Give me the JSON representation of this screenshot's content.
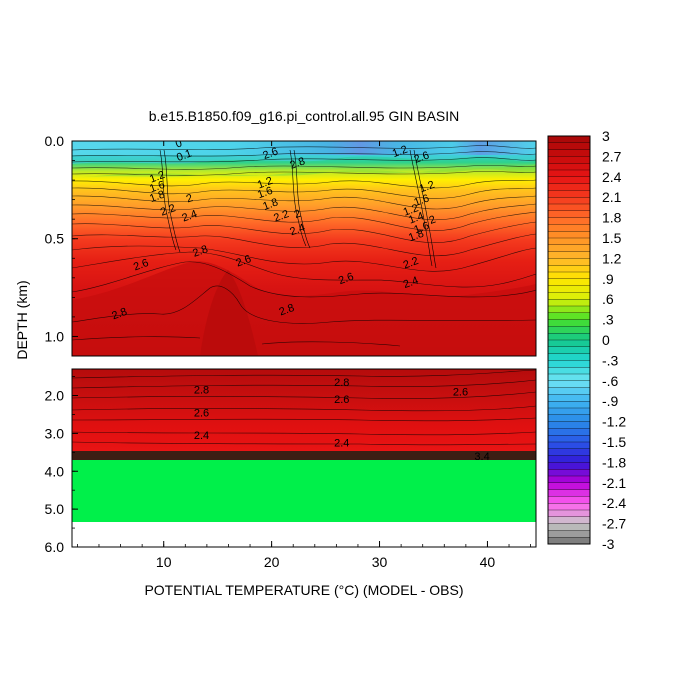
{
  "chart_data": {
    "type": "heatmap",
    "title": "b.e15.B1850.f09_g16.pi_control.all.95 GIN BASIN",
    "xlabel": "POTENTIAL TEMPERATURE (°C) (MODEL - OBS)",
    "ylabel": "DEPTH (km)",
    "x_ticks": [
      "10",
      "20",
      "30",
      "40"
    ],
    "x_range": [
      1.5,
      44.5
    ],
    "upper_panel": {
      "y_range": [
        0.0,
        1.1
      ],
      "y_ticks": [
        "0.0",
        "0.5",
        "1.0"
      ]
    },
    "lower_panel": {
      "y_range": [
        1.3,
        6.0
      ],
      "y_ticks": [
        "2.0",
        "3.0",
        "4.0",
        "5.0",
        "6.0"
      ]
    },
    "colorbar": {
      "labels": [
        "3",
        "2.7",
        "2.4",
        "2.1",
        "1.8",
        "1.5",
        "1.2",
        ".9",
        ".6",
        ".3",
        "0",
        "-.3",
        "-.6",
        "-.9",
        "-1.2",
        "-1.5",
        "-1.8",
        "-2.1",
        "-2.4",
        "-2.7",
        "-3"
      ],
      "min": -3,
      "max": 3
    },
    "contour_labels": {
      "upper": [
        {
          "x": 11.5,
          "depth": 0.03,
          "text": "0"
        },
        {
          "x": 12.0,
          "depth": 0.09,
          "text": "0.1"
        },
        {
          "x": 20.0,
          "depth": 0.08,
          "text": "2.6"
        },
        {
          "x": 22.5,
          "depth": 0.13,
          "text": "2.8"
        },
        {
          "x": 32.0,
          "depth": 0.07,
          "text": "1.2"
        },
        {
          "x": 34.0,
          "depth": 0.1,
          "text": "2.6"
        },
        {
          "x": 9.5,
          "depth": 0.2,
          "text": "1.2"
        },
        {
          "x": 9.5,
          "depth": 0.25,
          "text": "1.6"
        },
        {
          "x": 9.5,
          "depth": 0.3,
          "text": "1.8"
        },
        {
          "x": 12.5,
          "depth": 0.31,
          "text": "2"
        },
        {
          "x": 10.5,
          "depth": 0.37,
          "text": "2.2"
        },
        {
          "x": 12.5,
          "depth": 0.4,
          "text": "2.4"
        },
        {
          "x": 19.5,
          "depth": 0.23,
          "text": "1.2"
        },
        {
          "x": 19.5,
          "depth": 0.28,
          "text": "1.6"
        },
        {
          "x": 20.0,
          "depth": 0.34,
          "text": "1.8"
        },
        {
          "x": 22.5,
          "depth": 0.39,
          "text": "2"
        },
        {
          "x": 21.0,
          "depth": 0.4,
          "text": "2.2"
        },
        {
          "x": 22.5,
          "depth": 0.47,
          "text": "2.4"
        },
        {
          "x": 34.5,
          "depth": 0.25,
          "text": "1.2"
        },
        {
          "x": 34.0,
          "depth": 0.32,
          "text": "1.6"
        },
        {
          "x": 33.0,
          "depth": 0.37,
          "text": "1.2"
        },
        {
          "x": 33.5,
          "depth": 0.41,
          "text": "1.4"
        },
        {
          "x": 35.0,
          "depth": 0.42,
          "text": "2"
        },
        {
          "x": 34.0,
          "depth": 0.46,
          "text": "1.6"
        },
        {
          "x": 33.5,
          "depth": 0.5,
          "text": "1.8"
        },
        {
          "x": 13.5,
          "depth": 0.58,
          "text": "2.8"
        },
        {
          "x": 8.0,
          "depth": 0.65,
          "text": "2.6"
        },
        {
          "x": 17.5,
          "depth": 0.63,
          "text": "2.6"
        },
        {
          "x": 33.0,
          "depth": 0.64,
          "text": "2.2"
        },
        {
          "x": 27.0,
          "depth": 0.72,
          "text": "2.6"
        },
        {
          "x": 33.0,
          "depth": 0.74,
          "text": "2.4"
        },
        {
          "x": 6.0,
          "depth": 0.9,
          "text": "2.8"
        },
        {
          "x": 21.5,
          "depth": 0.88,
          "text": "2.8"
        }
      ],
      "lower": [
        {
          "x": 13.5,
          "depth": 1.95,
          "text": "2.8"
        },
        {
          "x": 13.5,
          "depth": 2.55,
          "text": "2.6"
        },
        {
          "x": 13.5,
          "depth": 3.15,
          "text": "2.4"
        },
        {
          "x": 26.5,
          "depth": 1.75,
          "text": "2.8"
        },
        {
          "x": 26.5,
          "depth": 2.2,
          "text": "2.6"
        },
        {
          "x": 26.5,
          "depth": 3.35,
          "text": "2.4"
        },
        {
          "x": 37.5,
          "depth": 2.0,
          "text": "2.6"
        },
        {
          "x": 39.5,
          "depth": 3.7,
          "text": "3.4"
        }
      ]
    }
  }
}
